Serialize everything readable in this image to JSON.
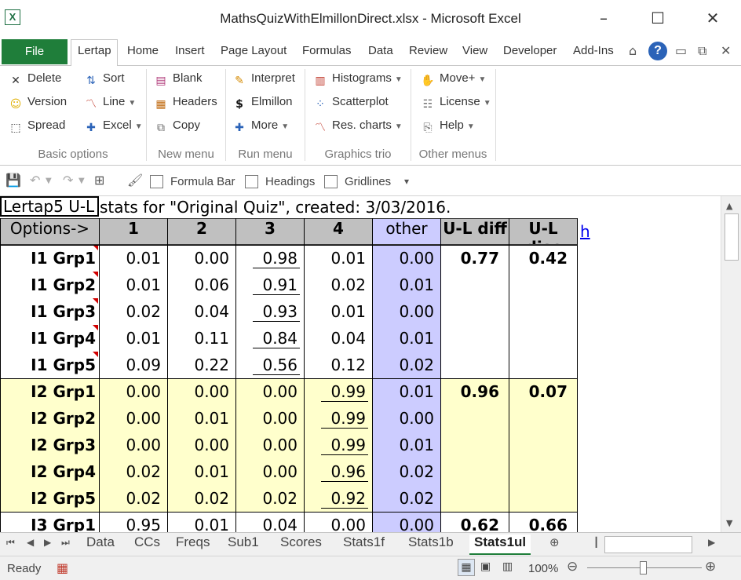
{
  "window": {
    "title": "MathsQuizWithElmillonDirect.xlsx - Microsoft Excel",
    "minimize": "–",
    "maximize": "☐",
    "close": "✕"
  },
  "ribbon_tabs": [
    "File",
    "Lertap",
    "Home",
    "Insert",
    "Page Layout",
    "Formulas",
    "Data",
    "Review",
    "View",
    "Developer",
    "Add-Ins"
  ],
  "ribbon": {
    "groups": [
      "Basic options",
      "New menu",
      "Run menu",
      "Graphics trio",
      "Other menus"
    ],
    "basic": [
      "Delete",
      "Version",
      "Spread",
      "Sort",
      "Line",
      "Excel"
    ],
    "newmenu": [
      "Blank",
      "Headers",
      "Copy"
    ],
    "runmenu": [
      "Interpret",
      "Elmillon",
      "More"
    ],
    "graphics": [
      "Histograms",
      "Scatterplot",
      "Res. charts"
    ],
    "other": [
      "Move+",
      "License",
      "Help"
    ]
  },
  "qat": {
    "formula_bar": "Formula Bar",
    "headings": "Headings",
    "gridlines": "Gridlines"
  },
  "sheet": {
    "a1": "Lertap5 U-L",
    "a1_rest": "stats for \"Original Quiz\", created: 3/03/2016.",
    "headers": [
      "Options->",
      "1",
      "2",
      "3",
      "4",
      "other",
      "U-L diff",
      "U-L disc"
    ],
    "hlink": "h",
    "rows": [
      {
        "label": "I1 Grp1",
        "v": [
          "0.01",
          "0.00",
          "0.98",
          "0.01",
          "0.00"
        ],
        "diff": "0.77",
        "disc": "0.42",
        "key": 2
      },
      {
        "label": "I1 Grp2",
        "v": [
          "0.01",
          "0.06",
          "0.91",
          "0.02",
          "0.01"
        ],
        "diff": "",
        "disc": "",
        "key": 2
      },
      {
        "label": "I1 Grp3",
        "v": [
          "0.02",
          "0.04",
          "0.93",
          "0.01",
          "0.00"
        ],
        "diff": "",
        "disc": "",
        "key": 2
      },
      {
        "label": "I1 Grp4",
        "v": [
          "0.01",
          "0.11",
          "0.84",
          "0.04",
          "0.01"
        ],
        "diff": "",
        "disc": "",
        "key": 2
      },
      {
        "label": "I1 Grp5",
        "v": [
          "0.09",
          "0.22",
          "0.56",
          "0.12",
          "0.02"
        ],
        "diff": "",
        "disc": "",
        "key": 2
      },
      {
        "label": "I2 Grp1",
        "v": [
          "0.00",
          "0.00",
          "0.00",
          "0.99",
          "0.01"
        ],
        "diff": "0.96",
        "disc": "0.07",
        "key": 3
      },
      {
        "label": "I2 Grp2",
        "v": [
          "0.00",
          "0.01",
          "0.00",
          "0.99",
          "0.00"
        ],
        "diff": "",
        "disc": "",
        "key": 3
      },
      {
        "label": "I2 Grp3",
        "v": [
          "0.00",
          "0.00",
          "0.00",
          "0.99",
          "0.01"
        ],
        "diff": "",
        "disc": "",
        "key": 3
      },
      {
        "label": "I2 Grp4",
        "v": [
          "0.02",
          "0.01",
          "0.00",
          "0.96",
          "0.02"
        ],
        "diff": "",
        "disc": "",
        "key": 3
      },
      {
        "label": "I2 Grp5",
        "v": [
          "0.02",
          "0.02",
          "0.02",
          "0.92",
          "0.02"
        ],
        "diff": "",
        "disc": "",
        "key": 3
      },
      {
        "label": "I3 Grp1",
        "v": [
          "0.95",
          "0.01",
          "0.04",
          "0.00",
          "0.00"
        ],
        "diff": "0.62",
        "disc": "0.66",
        "key": 0
      }
    ]
  },
  "sheet_tabs": [
    "Data",
    "CCs",
    "Freqs",
    "Sub1",
    "Scores",
    "Stats1f",
    "Stats1b",
    "Stats1ul"
  ],
  "active_tab": "Stats1ul",
  "status": {
    "ready": "Ready",
    "zoom": "100%"
  },
  "colors": {
    "excel_green": "#1f7e3a",
    "other_col": "#ccccff",
    "band_yellow": "#ffffcc",
    "header_grey": "#c0c0c0"
  }
}
